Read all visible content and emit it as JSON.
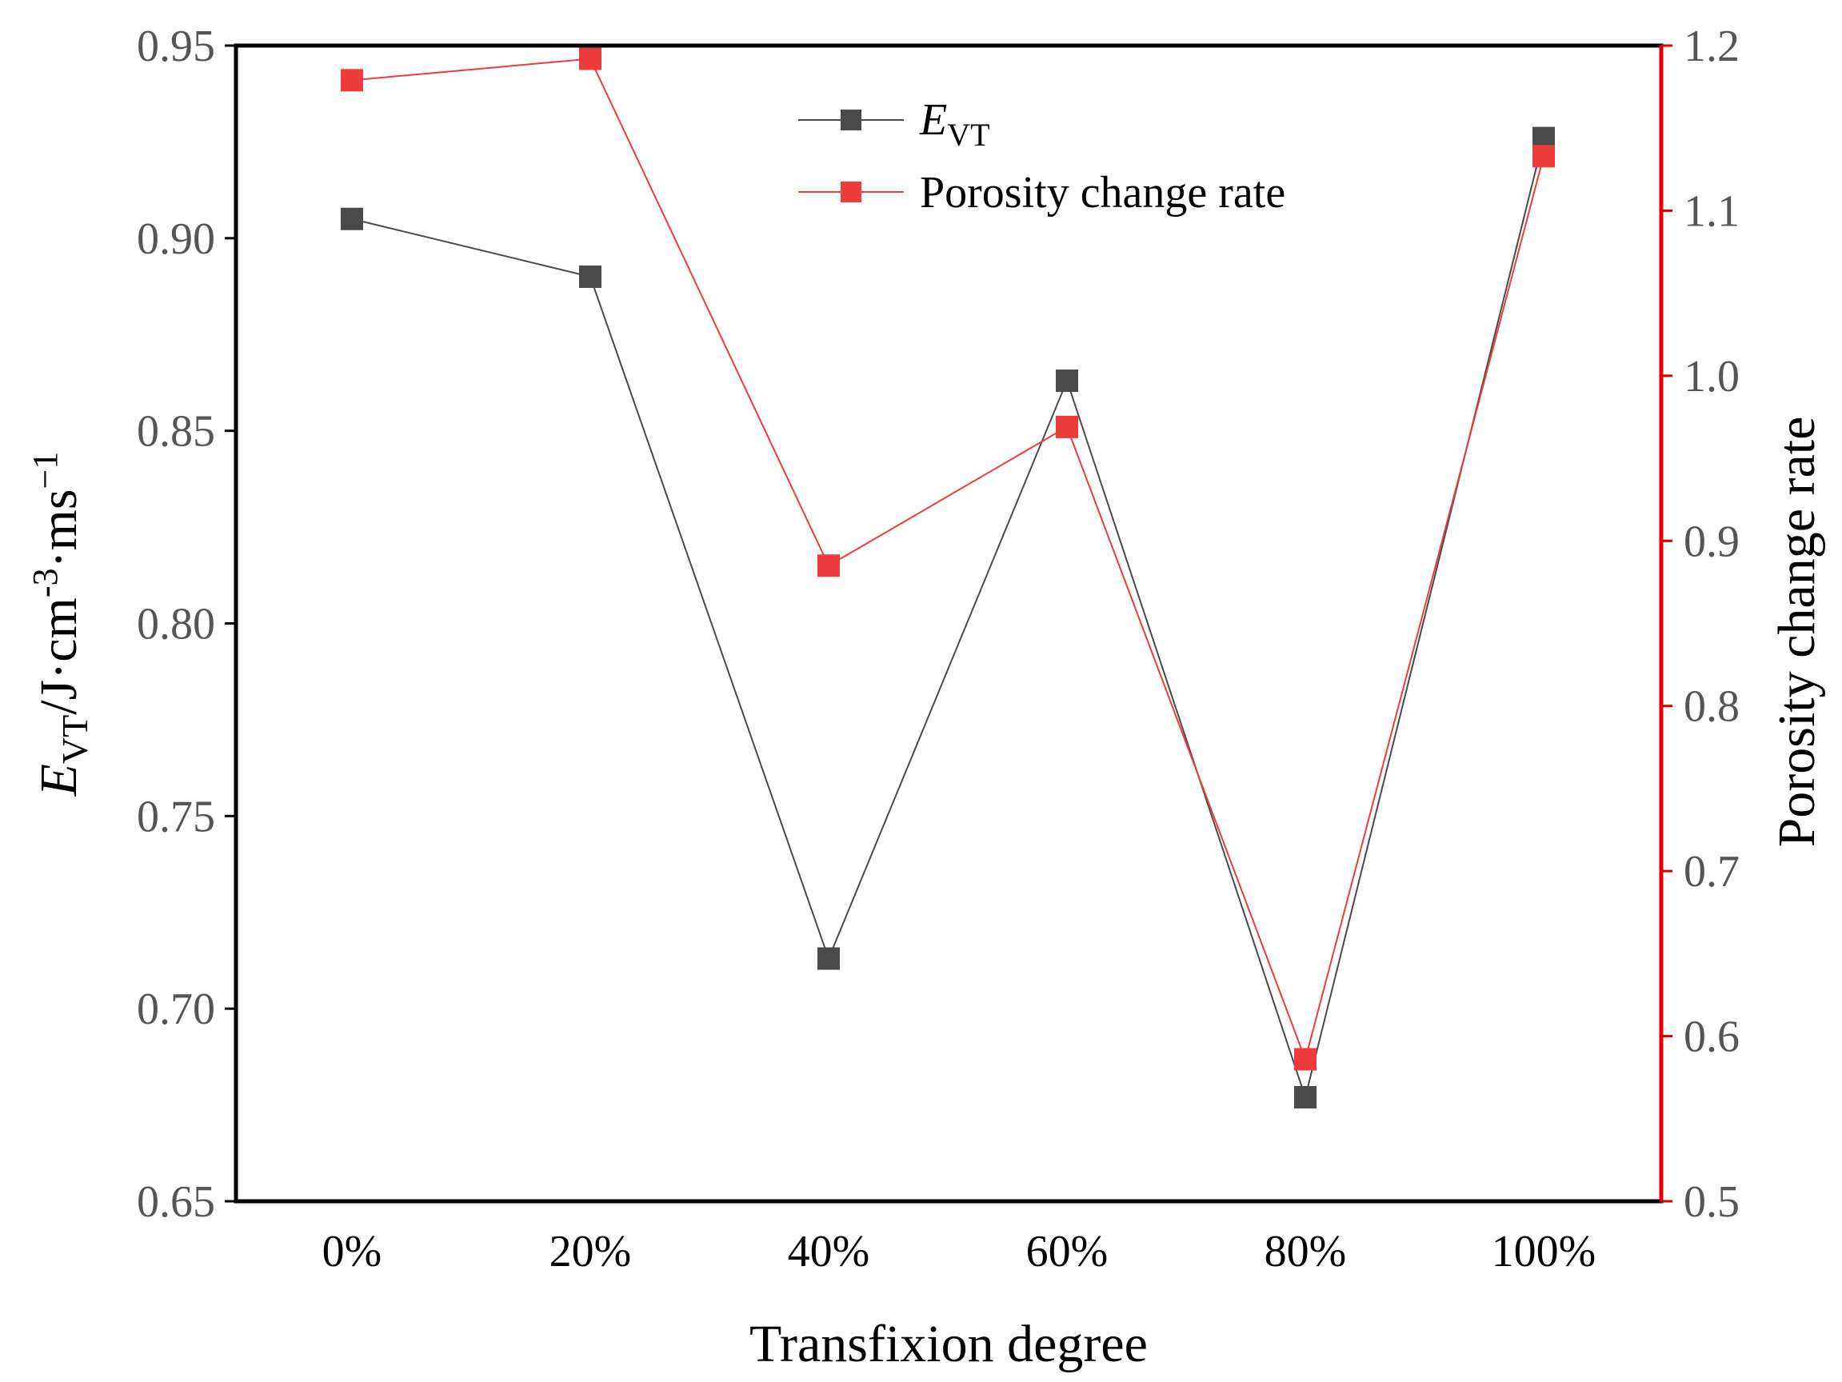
{
  "chart_data": {
    "type": "line",
    "categories": [
      "0%",
      "20%",
      "40%",
      "60%",
      "80%",
      "100%"
    ],
    "xlabel": "Transfixion degree",
    "left_axis": {
      "ylim": [
        0.65,
        0.95
      ],
      "ticks": [
        "0.65",
        "0.70",
        "0.75",
        "0.80",
        "0.85",
        "0.90",
        "0.95"
      ],
      "label_main": "E",
      "label_sub": "VT",
      "label_mid": "/J·cm",
      "label_sup1": "-3",
      "label_mid2": "·ms",
      "label_sup2": "−1"
    },
    "right_axis": {
      "ylim": [
        0.5,
        1.2
      ],
      "ticks": [
        "0.5",
        "0.6",
        "0.7",
        "0.8",
        "0.9",
        "1.0",
        "1.1",
        "1.2"
      ],
      "label": "Porosity change rate",
      "color": "#e00000"
    },
    "series": [
      {
        "name": "E_VT",
        "legend_main": "E",
        "legend_sub": "VT",
        "axis": "left",
        "color": "#4a4a4a",
        "values": [
          0.905,
          0.89,
          0.713,
          0.863,
          0.677,
          0.926
        ]
      },
      {
        "name": "Porosity change rate",
        "legend_label": "Porosity change rate",
        "axis": "right",
        "color": "#ee3b3b",
        "values": [
          1.179,
          1.192,
          0.885,
          0.969,
          0.586,
          1.133
        ]
      }
    ],
    "legend_position": "top-center",
    "grid": false
  }
}
